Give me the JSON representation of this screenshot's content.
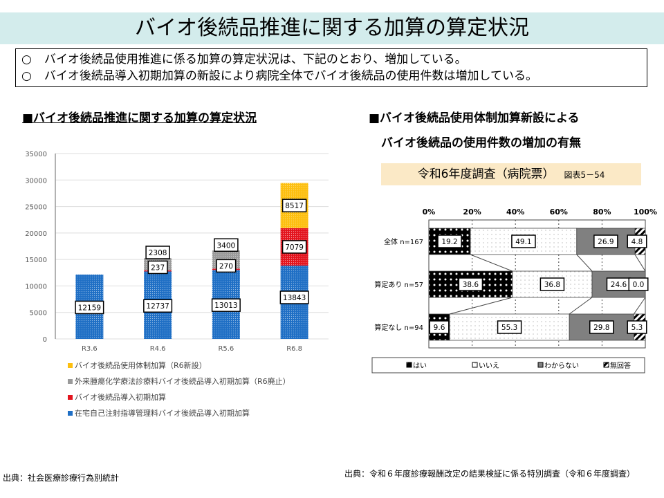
{
  "title": "バイオ後続品推進に関する加算の算定状況",
  "bullets": [
    {
      "mark": "○",
      "text": "バイオ後続品使用推進に係る加算の算定状況は、下記のとおり、増加している。"
    },
    {
      "mark": "○",
      "text": "バイオ後続品導入初期加算の新設により病院全体でバイオ後続品の使用件数は増加している。"
    }
  ],
  "left_heading": "■バイオ後続品推進に関する加算の算定状況",
  "right_heading_1": "■バイオ後続品使用体制加算新設による",
  "right_heading_2": "バイオ後続品の使用件数の増加の有無",
  "survey_label": "令和6年度調査（病院票）",
  "survey_ref": "図表5－54",
  "source_left": "出典：社会医療診療行為別統計",
  "source_right": "出典：令和６年度診療報酬改定の結果検証に係る特別調査（令和６年度調査）",
  "chart_data": [
    {
      "type": "bar",
      "stacked": true,
      "categories": [
        "R3.6",
        "R4.6",
        "R5.6",
        "R6.8"
      ],
      "ylim": [
        0,
        35000
      ],
      "yticks": [
        "0",
        "5000",
        "10000",
        "15000",
        "20000",
        "25000",
        "30000",
        "35000"
      ],
      "series": [
        {
          "name": "在宅自己注射指導管理料バイオ後続品導入初期加算",
          "color": "#1f6fc5",
          "values": [
            12159,
            12737,
            13013,
            13843
          ]
        },
        {
          "name": "バイオ後続品導入初期加算",
          "color": "#e3141e",
          "values": [
            0,
            237,
            270,
            7079
          ]
        },
        {
          "name": "外来腫瘍化学療法診療料バイオ後続品導入初期加算（R6廃止）",
          "color": "#9a9a9a",
          "values": [
            0,
            2308,
            3400,
            0
          ]
        },
        {
          "name": "バイオ後続品使用体制加算（R6新設）",
          "color": "#fdbf0f",
          "values": [
            0,
            0,
            0,
            8517
          ]
        }
      ]
    },
    {
      "type": "bar",
      "stacked": true,
      "horizontal": true,
      "categories": [
        "全体 n=167",
        "算定あり n=57",
        "算定なし n=94"
      ],
      "xlim": [
        0,
        100
      ],
      "xticks": [
        "0%",
        "20%",
        "40%",
        "60%",
        "80%",
        "100%"
      ],
      "series": [
        {
          "name": "はい",
          "color": "#000000",
          "values": [
            19.2,
            38.6,
            9.6
          ],
          "labels": [
            "19.2",
            "38.6",
            "9.6"
          ]
        },
        {
          "name": "いいえ",
          "color": "#ffffff",
          "values": [
            49.1,
            36.8,
            55.3
          ],
          "labels": [
            "49.1",
            "36.8",
            "55.3"
          ]
        },
        {
          "name": "わからない",
          "color": "#808080",
          "values": [
            26.9,
            24.6,
            29.8
          ],
          "labels": [
            "26.9",
            "24.6",
            "29.8"
          ]
        },
        {
          "name": "無回答",
          "color": "#ffffff",
          "values": [
            4.8,
            0.0,
            5.3
          ],
          "labels": [
            "4.8",
            "0.0",
            "5.3"
          ]
        }
      ]
    }
  ]
}
